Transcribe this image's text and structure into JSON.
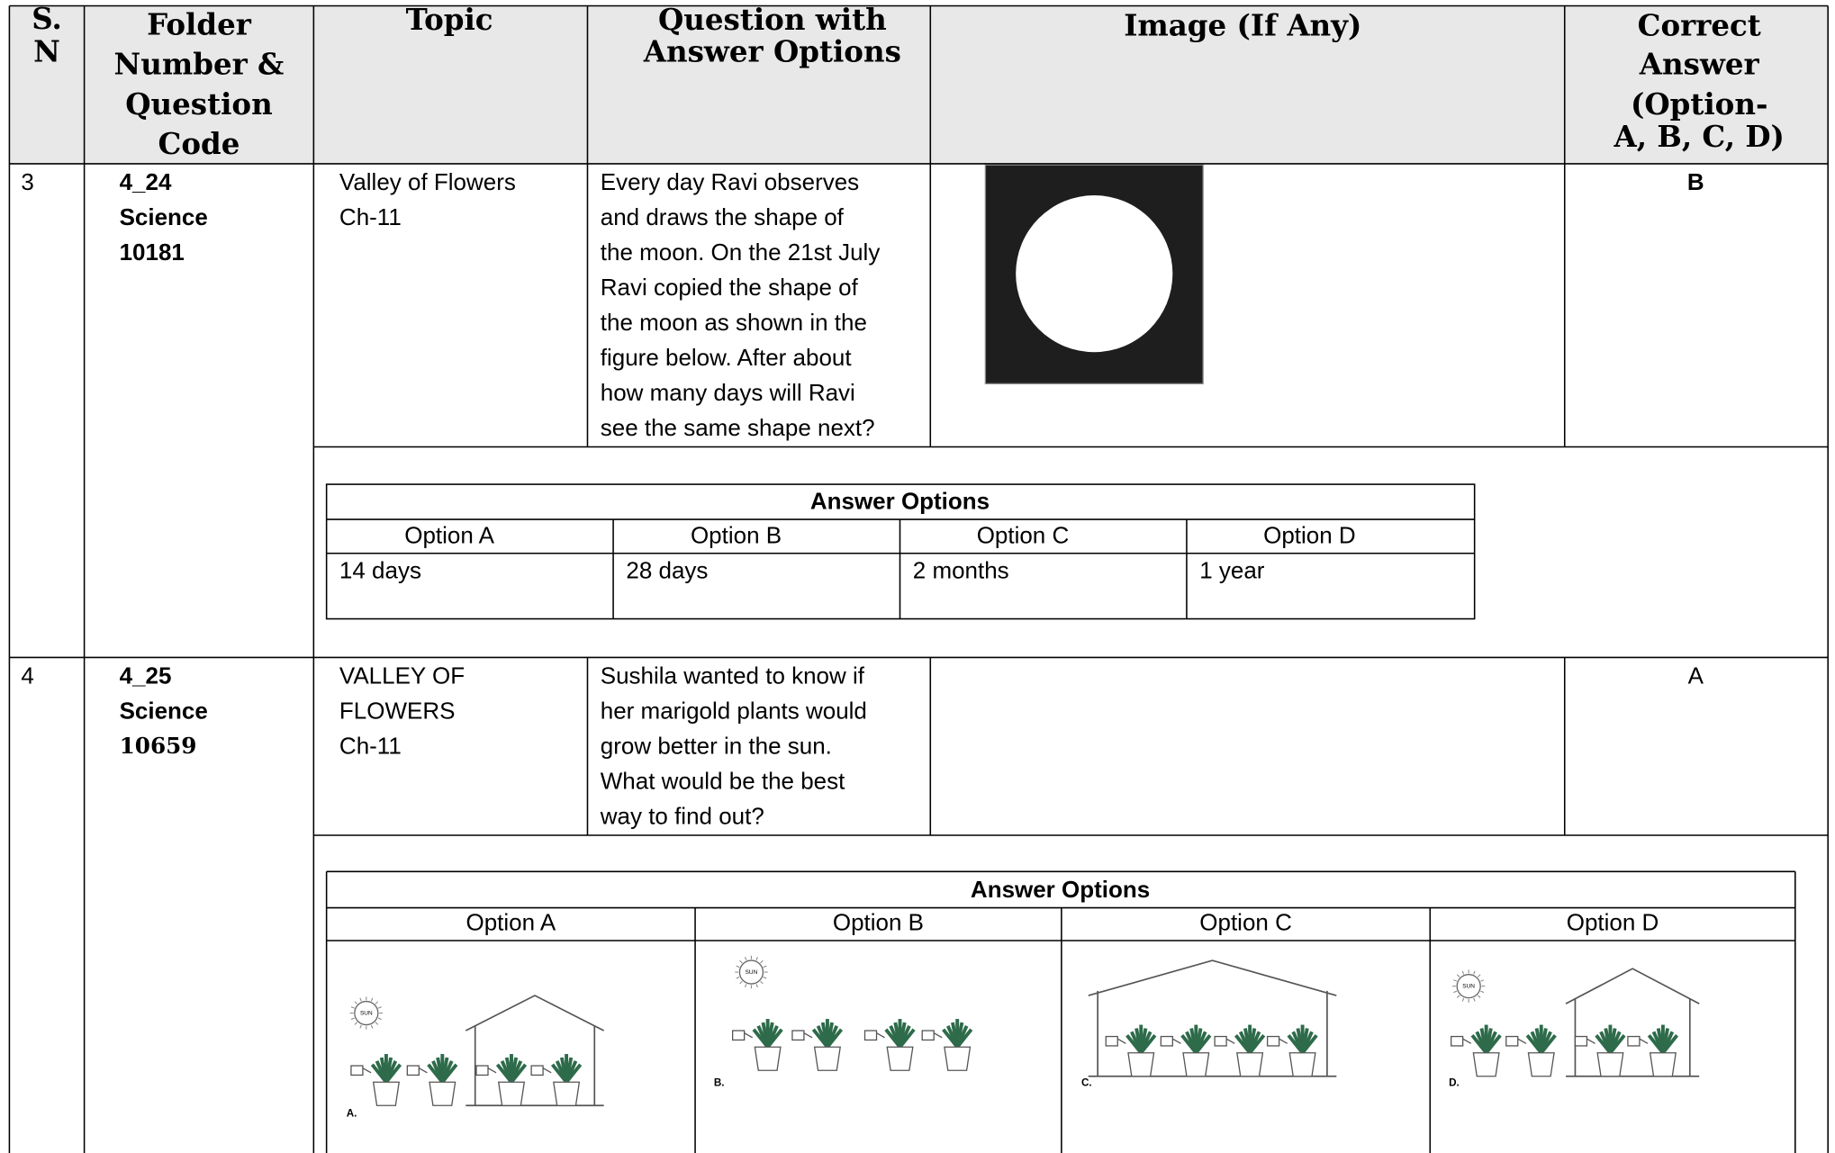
{
  "header": {
    "columns": [
      [
        "S.",
        "N"
      ],
      [
        "Folder",
        "Number &",
        "Question",
        "Code"
      ],
      [
        "Topic"
      ],
      [
        "Question with",
        "Answer Options"
      ],
      [
        "Image (If Any)"
      ],
      [
        "Correct",
        "Answer",
        "(Option-",
        "A, B, C, D)"
      ]
    ]
  },
  "rows": [
    {
      "sn": "3",
      "code": [
        "4_24",
        "Science",
        "10181"
      ],
      "topic": [
        "Valley of Flowers",
        "Ch-11"
      ],
      "question": [
        "Every day Ravi observes",
        "and draws the shape of",
        "the moon. On the 21st July",
        "Ravi copied the shape of",
        "the moon as shown in the",
        "figure below. After about",
        "how many days will Ravi",
        "see the same shape next?"
      ],
      "correct_answer": "B",
      "answer_options": {
        "title": "Answer Options",
        "headers": [
          "Option A",
          "Option B",
          "Option C",
          "Option D"
        ],
        "values": [
          "14 days",
          "28 days",
          "2 months",
          "1 year"
        ]
      }
    },
    {
      "sn": "4",
      "code": [
        "4_25",
        "Science",
        "10659"
      ],
      "topic": [
        "VALLEY OF",
        "FLOWERS",
        "Ch-11"
      ],
      "question": [
        "Sushila wanted to know if",
        "her marigold plants would",
        "grow better in the sun.",
        "What would be the best",
        "way to find out?"
      ],
      "correct_answer": "A",
      "answer_options": {
        "title": "Answer Options",
        "headers": [
          "Option A",
          "Option B",
          "Option C",
          "Option D"
        ],
        "image_labels": [
          "A.",
          "B.",
          "C.",
          "D."
        ],
        "sun_label": "SUN"
      }
    }
  ]
}
